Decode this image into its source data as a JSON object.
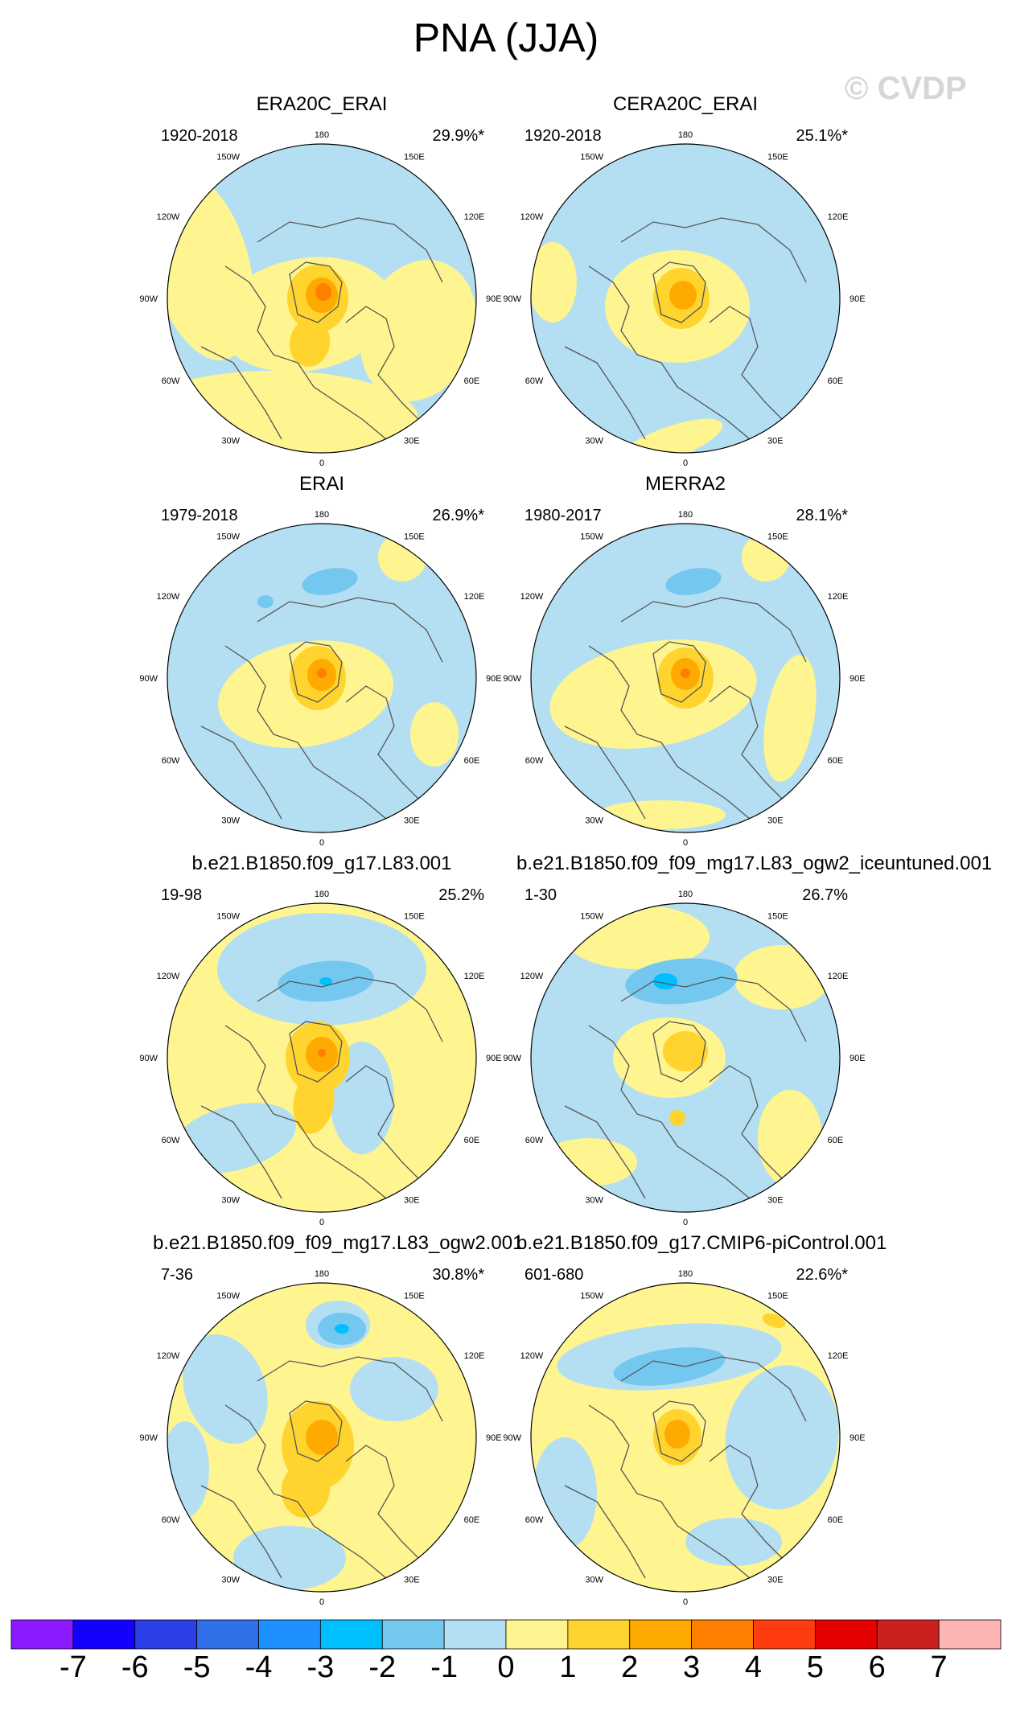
{
  "title": "PNA (JJA)",
  "watermark": "© CVDP",
  "chart_data": {
    "type": "heatmap",
    "projection": "north polar stereographic",
    "variable": "PNA pattern regression (JJA)",
    "lon_labels": [
      "180",
      "150E",
      "120E",
      "90E",
      "60E",
      "30E",
      "0",
      "30W",
      "60W",
      "90W",
      "120W",
      "150W"
    ],
    "panels": [
      {
        "name": "ERA20C_ERAI",
        "years": "1920-2018",
        "pct": "29.9%*"
      },
      {
        "name": "CERA20C_ERAI",
        "years": "1920-2018",
        "pct": "25.1%*"
      },
      {
        "name": "ERAI",
        "years": "1979-2018",
        "pct": "26.9%*"
      },
      {
        "name": "MERRA2",
        "years": "1980-2017",
        "pct": "28.1%*"
      },
      {
        "name": "b.e21.B1850.f09_g17.L83.001",
        "years": "19-98",
        "pct": "25.2%"
      },
      {
        "name": "b.e21.B1850.f09_f09_mg17.L83_ogw2_iceuntuned.001",
        "years": "1-30",
        "pct": "26.7%"
      },
      {
        "name": "b.e21.B1850.f09_f09_mg17.L83_ogw2.001",
        "years": "7-36",
        "pct": "30.8%*"
      },
      {
        "name": "b.e21.B1850.f09_g17.CMIP6-piControl.001",
        "years": "601-680",
        "pct": "22.6%*"
      }
    ],
    "colorbar": {
      "labels": [
        "-7",
        "-6",
        "-5",
        "-4",
        "-3",
        "-2",
        "-1",
        "0",
        "1",
        "2",
        "3",
        "4",
        "5",
        "6",
        "7"
      ],
      "colors": [
        "#8c1aff",
        "#1400ff",
        "#2d3fe6",
        "#2f6fe8",
        "#1e90ff",
        "#00bfff",
        "#74c8f0",
        "#b4dff2",
        "#fff590",
        "#ffd42e",
        "#ffaa00",
        "#ff7f00",
        "#ff3c0f",
        "#e60000",
        "#cc1f1f",
        "#ffb4b4"
      ]
    }
  }
}
